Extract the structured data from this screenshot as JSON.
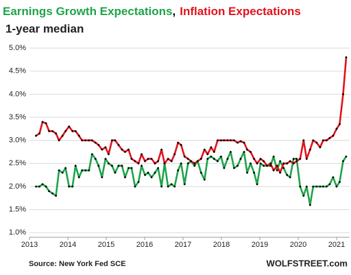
{
  "chart_data": {
    "type": "line",
    "title_parts": [
      {
        "text": "Earnings Growth Expectations",
        "color": "#1fa34a"
      },
      {
        "text": ",",
        "color": "#000000"
      },
      {
        "text": "Inflation Expectations",
        "color": "#e3121b"
      }
    ],
    "subtitle": "1-year median",
    "source": "Source: New York Fed SCE",
    "credit": "WOLFSTREET.com",
    "x": [
      2013.17,
      2013.26,
      2013.34,
      2013.43,
      2013.51,
      2013.6,
      2013.69,
      2013.77,
      2013.86,
      2013.94,
      2014.03,
      2014.12,
      2014.2,
      2014.29,
      2014.37,
      2014.46,
      2014.55,
      2014.63,
      2014.72,
      2014.8,
      2014.89,
      2014.98,
      2015.06,
      2015.15,
      2015.23,
      2015.32,
      2015.41,
      2015.49,
      2015.58,
      2015.66,
      2015.75,
      2015.84,
      2015.92,
      2016.01,
      2016.09,
      2016.18,
      2016.27,
      2016.35,
      2016.44,
      2016.52,
      2016.61,
      2016.7,
      2016.78,
      2016.87,
      2016.95,
      2017.04,
      2017.13,
      2017.21,
      2017.3,
      2017.38,
      2017.47,
      2017.56,
      2017.64,
      2017.73,
      2017.81,
      2017.9,
      2017.99,
      2018.07,
      2018.16,
      2018.24,
      2018.33,
      2018.42,
      2018.5,
      2018.59,
      2018.67,
      2018.76,
      2018.85,
      2018.93,
      2019.02,
      2019.1,
      2019.19,
      2019.28,
      2019.36,
      2019.45,
      2019.53,
      2019.62,
      2019.71,
      2019.79,
      2019.88,
      2019.96,
      2020.05,
      2020.14,
      2020.22,
      2020.31,
      2020.39,
      2020.48,
      2020.57,
      2020.65,
      2020.74,
      2020.82,
      2020.91,
      2021.0,
      2021.08,
      2021.17,
      2021.25
    ],
    "series": [
      {
        "name": "Earnings Growth Expectations",
        "color": "#1fa34a",
        "values": [
          2.0,
          2.0,
          2.05,
          2.0,
          1.9,
          1.85,
          1.8,
          2.35,
          2.3,
          2.4,
          2.0,
          2.0,
          2.45,
          2.2,
          2.35,
          2.35,
          2.35,
          2.7,
          2.6,
          2.45,
          2.2,
          2.6,
          2.5,
          2.45,
          2.3,
          2.45,
          2.45,
          2.2,
          2.4,
          2.4,
          2.0,
          2.1,
          2.45,
          2.25,
          2.3,
          2.2,
          2.3,
          2.4,
          2.0,
          2.5,
          2.0,
          2.05,
          2.0,
          2.35,
          2.5,
          2.05,
          2.5,
          2.55,
          2.45,
          2.55,
          2.3,
          2.15,
          2.6,
          2.65,
          2.6,
          2.55,
          2.65,
          2.4,
          2.6,
          2.75,
          2.4,
          2.45,
          2.6,
          2.75,
          2.3,
          2.5,
          2.3,
          2.05,
          2.5,
          2.45,
          2.45,
          2.45,
          2.65,
          2.35,
          2.55,
          2.4,
          2.25,
          2.2,
          2.6,
          2.6,
          2.0,
          1.8,
          2.0,
          1.6,
          2.0,
          2.0,
          2.0,
          2.0,
          2.0,
          2.05,
          2.2,
          2.0,
          2.1,
          2.55,
          2.65
        ]
      },
      {
        "name": "Inflation Expectations",
        "color": "#e3121b",
        "values": [
          3.1,
          3.15,
          3.4,
          3.37,
          3.2,
          3.2,
          3.15,
          3.0,
          3.1,
          3.2,
          3.3,
          3.2,
          3.2,
          3.1,
          3.0,
          3.0,
          3.0,
          3.0,
          2.95,
          2.9,
          2.8,
          2.85,
          2.7,
          3.0,
          3.0,
          2.9,
          2.8,
          2.75,
          2.8,
          2.6,
          2.55,
          2.5,
          2.7,
          2.55,
          2.6,
          2.6,
          2.5,
          2.55,
          2.8,
          2.5,
          2.6,
          2.55,
          2.7,
          2.95,
          2.9,
          2.65,
          2.6,
          2.55,
          2.5,
          2.55,
          2.6,
          2.8,
          2.7,
          2.85,
          2.75,
          3.0,
          3.0,
          3.0,
          3.0,
          3.0,
          3.0,
          2.95,
          2.98,
          2.95,
          2.8,
          2.75,
          2.6,
          2.5,
          2.6,
          2.55,
          2.45,
          2.5,
          2.35,
          2.45,
          2.3,
          2.5,
          2.5,
          2.55,
          2.5,
          2.55,
          2.6,
          3.0,
          2.6,
          2.8,
          3.0,
          2.95,
          2.85,
          3.0,
          3.0,
          3.05,
          3.1,
          3.25,
          3.35,
          4.0,
          4.8
        ]
      }
    ],
    "marker_color": "#000000",
    "xlim": [
      2013,
      2021.34
    ],
    "xticks": [
      2013,
      2014,
      2015,
      2016,
      2017,
      2018,
      2019,
      2020,
      2021
    ],
    "ylim": [
      0.9,
      5.15
    ],
    "yticks": [
      {
        "value": 1.0,
        "label": "1.0%"
      },
      {
        "value": 1.5,
        "label": "1.5%"
      },
      {
        "value": 2.0,
        "label": "2.0%"
      },
      {
        "value": 2.5,
        "label": "2.5%"
      },
      {
        "value": 3.0,
        "label": "3.0%"
      },
      {
        "value": 3.5,
        "label": "3.5%"
      },
      {
        "value": 4.0,
        "label": "4.0%"
      },
      {
        "value": 4.5,
        "label": "4.5%"
      },
      {
        "value": 5.0,
        "label": "5.0%"
      }
    ],
    "grid": true
  }
}
